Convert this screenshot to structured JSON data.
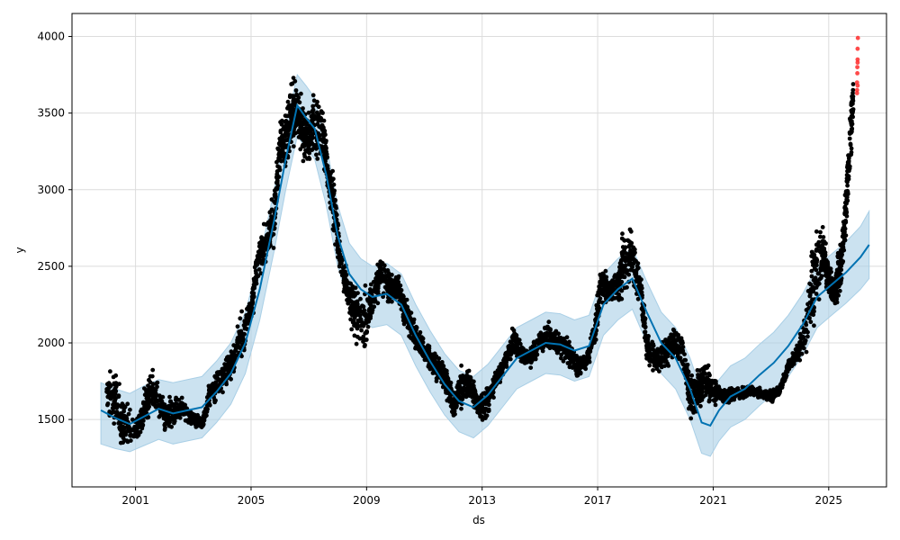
{
  "chart_data": {
    "type": "scatter",
    "xlabel": "ds",
    "ylabel": "y",
    "xlim": [
      1998.8,
      2027.0
    ],
    "ylim": [
      1060,
      4150
    ],
    "x_ticks": [
      {
        "value": 2001,
        "label": "2001"
      },
      {
        "value": 2005,
        "label": "2005"
      },
      {
        "value": 2009,
        "label": "2009"
      },
      {
        "value": 2013,
        "label": "2013"
      },
      {
        "value": 2017,
        "label": "2017"
      },
      {
        "value": 2021,
        "label": "2021"
      },
      {
        "value": 2025,
        "label": "2025"
      }
    ],
    "y_ticks": [
      {
        "value": 1500,
        "label": "1500"
      },
      {
        "value": 2000,
        "label": "2000"
      },
      {
        "value": 2500,
        "label": "2500"
      },
      {
        "value": 3000,
        "label": "3000"
      },
      {
        "value": 3500,
        "label": "3500"
      },
      {
        "value": 4000,
        "label": "4000"
      }
    ],
    "grid": true,
    "colors": {
      "observed": "#000000",
      "highlight": "#ff2a2a",
      "forecast_line": "#0072b2",
      "interval": "#a9cfe6"
    },
    "observed_envelope": [
      [
        2000.0,
        1500,
        1890
      ],
      [
        2000.3,
        1380,
        1880
      ],
      [
        2000.6,
        1260,
        1660
      ],
      [
        2001.0,
        1300,
        1560
      ],
      [
        2001.3,
        1420,
        1720
      ],
      [
        2001.6,
        1550,
        1860
      ],
      [
        2002.0,
        1380,
        1640
      ],
      [
        2002.3,
        1420,
        1700
      ],
      [
        2002.6,
        1470,
        1650
      ],
      [
        2003.0,
        1450,
        1560
      ],
      [
        2003.3,
        1420,
        1520
      ],
      [
        2003.6,
        1550,
        1800
      ],
      [
        2004.0,
        1650,
        1900
      ],
      [
        2004.3,
        1720,
        1980
      ],
      [
        2004.6,
        1800,
        2200
      ],
      [
        2005.0,
        2050,
        2350
      ],
      [
        2005.2,
        2350,
        2650
      ],
      [
        2005.5,
        2450,
        2850
      ],
      [
        2005.8,
        2600,
        3050
      ],
      [
        2006.0,
        3050,
        3500
      ],
      [
        2006.2,
        3100,
        3600
      ],
      [
        2006.4,
        3200,
        3800
      ],
      [
        2006.6,
        3300,
        3700
      ],
      [
        2006.8,
        3150,
        3630
      ],
      [
        2007.0,
        3100,
        3550
      ],
      [
        2007.2,
        3200,
        3700
      ],
      [
        2007.5,
        3100,
        3580
      ],
      [
        2007.7,
        2900,
        3250
      ],
      [
        2007.9,
        2600,
        3100
      ],
      [
        2008.1,
        2400,
        2650
      ],
      [
        2008.4,
        2100,
        2500
      ],
      [
        2008.6,
        2000,
        2420
      ],
      [
        2008.9,
        1800,
        2400
      ],
      [
        2009.2,
        2150,
        2450
      ],
      [
        2009.5,
        2300,
        2620
      ],
      [
        2009.8,
        2200,
        2500
      ],
      [
        2010.1,
        2250,
        2480
      ],
      [
        2010.3,
        2100,
        2350
      ],
      [
        2010.6,
        1950,
        2200
      ],
      [
        2010.9,
        1850,
        2100
      ],
      [
        2011.2,
        1800,
        2000
      ],
      [
        2011.5,
        1700,
        1950
      ],
      [
        2011.8,
        1600,
        1850
      ],
      [
        2012.0,
        1480,
        1700
      ],
      [
        2012.3,
        1550,
        1900
      ],
      [
        2012.6,
        1600,
        1850
      ],
      [
        2012.9,
        1450,
        1700
      ],
      [
        2013.2,
        1500,
        1750
      ],
      [
        2013.5,
        1700,
        1850
      ],
      [
        2013.8,
        1800,
        1950
      ],
      [
        2014.1,
        1900,
        2150
      ],
      [
        2014.4,
        1850,
        2000
      ],
      [
        2014.7,
        1800,
        2000
      ],
      [
        2015.0,
        1900,
        2100
      ],
      [
        2015.3,
        1950,
        2150
      ],
      [
        2015.6,
        1900,
        2100
      ],
      [
        2016.0,
        1800,
        2050
      ],
      [
        2016.3,
        1750,
        1950
      ],
      [
        2016.6,
        1800,
        1950
      ],
      [
        2016.9,
        1950,
        2200
      ],
      [
        2017.1,
        2200,
        2550
      ],
      [
        2017.4,
        2250,
        2450
      ],
      [
        2017.7,
        2250,
        2480
      ],
      [
        2017.9,
        2200,
        2850
      ],
      [
        2018.2,
        2350,
        2750
      ],
      [
        2018.5,
        2200,
        2450
      ],
      [
        2018.7,
        1850,
        2100
      ],
      [
        2019.0,
        1750,
        2050
      ],
      [
        2019.3,
        1800,
        2050
      ],
      [
        2019.6,
        1850,
        2150
      ],
      [
        2019.9,
        1850,
        2100
      ],
      [
        2020.2,
        1450,
        1850
      ],
      [
        2020.5,
        1550,
        1850
      ],
      [
        2020.7,
        1600,
        1950
      ],
      [
        2021.0,
        1550,
        1800
      ],
      [
        2021.3,
        1600,
        1720
      ],
      [
        2021.6,
        1600,
        1720
      ],
      [
        2022.0,
        1620,
        1720
      ],
      [
        2022.3,
        1650,
        1730
      ],
      [
        2022.6,
        1620,
        1720
      ],
      [
        2023.0,
        1600,
        1700
      ],
      [
        2023.3,
        1650,
        1730
      ],
      [
        2023.6,
        1800,
        1900
      ],
      [
        2023.9,
        1850,
        2000
      ],
      [
        2024.2,
        1900,
        2250
      ],
      [
        2024.5,
        2050,
        2900
      ],
      [
        2024.8,
        2350,
        2800
      ],
      [
        2025.0,
        2250,
        2550
      ],
      [
        2025.2,
        2200,
        2500
      ],
      [
        2025.4,
        2250,
        2700
      ],
      [
        2025.55,
        2550,
        2950
      ],
      [
        2025.7,
        2900,
        3500
      ],
      [
        2025.85,
        3400,
        3800
      ]
    ],
    "highlighted_points": [
      [
        2025.98,
        3630
      ],
      [
        2025.98,
        3650
      ],
      [
        2025.98,
        3700
      ],
      [
        2025.99,
        3760
      ],
      [
        2025.99,
        3800
      ],
      [
        2026.0,
        3830
      ],
      [
        2026.0,
        3850
      ],
      [
        2026.0,
        3920
      ],
      [
        2026.01,
        3990
      ],
      [
        2026.0,
        3680
      ]
    ],
    "forecast": [
      [
        1999.8,
        1560,
        1340,
        1740
      ],
      [
        2000.3,
        1510,
        1310,
        1700
      ],
      [
        2000.8,
        1470,
        1290,
        1670
      ],
      [
        2001.3,
        1520,
        1330,
        1720
      ],
      [
        2001.8,
        1570,
        1370,
        1760
      ],
      [
        2002.3,
        1540,
        1340,
        1740
      ],
      [
        2002.8,
        1560,
        1360,
        1760
      ],
      [
        2003.3,
        1580,
        1380,
        1780
      ],
      [
        2003.8,
        1680,
        1480,
        1880
      ],
      [
        2004.3,
        1800,
        1600,
        2000
      ],
      [
        2004.8,
        2000,
        1800,
        2200
      ],
      [
        2005.3,
        2350,
        2150,
        2550
      ],
      [
        2005.8,
        2800,
        2600,
        3000
      ],
      [
        2006.2,
        3200,
        3000,
        3400
      ],
      [
        2006.6,
        3550,
        3350,
        3750
      ],
      [
        2006.9,
        3470,
        3270,
        3680
      ],
      [
        2007.2,
        3400,
        3200,
        3600
      ],
      [
        2007.6,
        3100,
        2900,
        3300
      ],
      [
        2008.0,
        2700,
        2500,
        2900
      ],
      [
        2008.4,
        2450,
        2250,
        2650
      ],
      [
        2008.8,
        2350,
        2150,
        2550
      ],
      [
        2009.2,
        2300,
        2100,
        2500
      ],
      [
        2009.7,
        2320,
        2120,
        2520
      ],
      [
        2010.2,
        2250,
        2050,
        2450
      ],
      [
        2010.7,
        2050,
        1850,
        2250
      ],
      [
        2011.2,
        1880,
        1680,
        2080
      ],
      [
        2011.7,
        1730,
        1530,
        1930
      ],
      [
        2012.2,
        1620,
        1420,
        1820
      ],
      [
        2012.7,
        1580,
        1380,
        1780
      ],
      [
        2013.2,
        1660,
        1460,
        1860
      ],
      [
        2013.7,
        1780,
        1580,
        1980
      ],
      [
        2014.2,
        1900,
        1700,
        2100
      ],
      [
        2014.7,
        1950,
        1750,
        2150
      ],
      [
        2015.2,
        2000,
        1800,
        2200
      ],
      [
        2015.7,
        1990,
        1790,
        2190
      ],
      [
        2016.2,
        1950,
        1750,
        2150
      ],
      [
        2016.7,
        1980,
        1780,
        2180
      ],
      [
        2017.2,
        2250,
        2050,
        2450
      ],
      [
        2017.7,
        2350,
        2150,
        2550
      ],
      [
        2018.2,
        2420,
        2220,
        2620
      ],
      [
        2018.7,
        2200,
        2000,
        2400
      ],
      [
        2019.2,
        2000,
        1800,
        2200
      ],
      [
        2019.7,
        1900,
        1700,
        2100
      ],
      [
        2020.2,
        1700,
        1500,
        1900
      ],
      [
        2020.6,
        1480,
        1280,
        1680
      ],
      [
        2020.9,
        1460,
        1260,
        1660
      ],
      [
        2021.2,
        1560,
        1360,
        1760
      ],
      [
        2021.6,
        1650,
        1450,
        1850
      ],
      [
        2022.1,
        1700,
        1500,
        1900
      ],
      [
        2022.6,
        1790,
        1590,
        1990
      ],
      [
        2023.1,
        1870,
        1670,
        2070
      ],
      [
        2023.6,
        1980,
        1780,
        2180
      ],
      [
        2024.1,
        2120,
        1920,
        2320
      ],
      [
        2024.6,
        2300,
        2100,
        2500
      ],
      [
        2025.1,
        2380,
        2180,
        2580
      ],
      [
        2025.6,
        2460,
        2260,
        2660
      ],
      [
        2026.1,
        2560,
        2350,
        2760
      ],
      [
        2026.4,
        2640,
        2420,
        2860
      ]
    ]
  }
}
